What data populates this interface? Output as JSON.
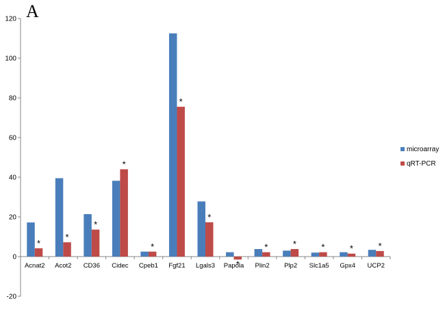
{
  "panel_label": "A",
  "chart_data": {
    "type": "bar",
    "title": "",
    "xlabel": "",
    "ylabel": "",
    "ylim": [
      -20,
      120
    ],
    "yticks": [
      -20,
      0,
      20,
      40,
      60,
      80,
      100,
      120
    ],
    "grid": false,
    "legend_position": "right",
    "categories": [
      "Acnat2",
      "Acot2",
      "CD36",
      "Cidec",
      "Cpeb1",
      "Fgf21",
      "Lgals3",
      "Papola",
      "Plin2",
      "Plp2",
      "Slc1a5",
      "Gpx4",
      "UCP2"
    ],
    "series": [
      {
        "name": "microarray",
        "color": "#4A7EBB",
        "values": [
          17.2,
          39.5,
          21.4,
          38.2,
          2.5,
          112.5,
          27.8,
          2.2,
          3.8,
          3.0,
          2.0,
          2.2,
          3.4
        ]
      },
      {
        "name": "qRT-PCR",
        "color": "#BE4B48",
        "values": [
          4.2,
          7.2,
          13.6,
          44.0,
          2.5,
          75.5,
          17.3,
          -1.5,
          2.2,
          3.8,
          2.2,
          1.5,
          2.8
        ]
      }
    ],
    "annotations": {
      "marker": "*",
      "series": "qRT-PCR",
      "categories": [
        "Acnat2",
        "Acot2",
        "CD36",
        "Cidec",
        "Cpeb1",
        "Fgf21",
        "Lgals3",
        "Papola",
        "Plin2",
        "Plp2",
        "Slc1a5",
        "Gpx4",
        "UCP2"
      ]
    }
  }
}
